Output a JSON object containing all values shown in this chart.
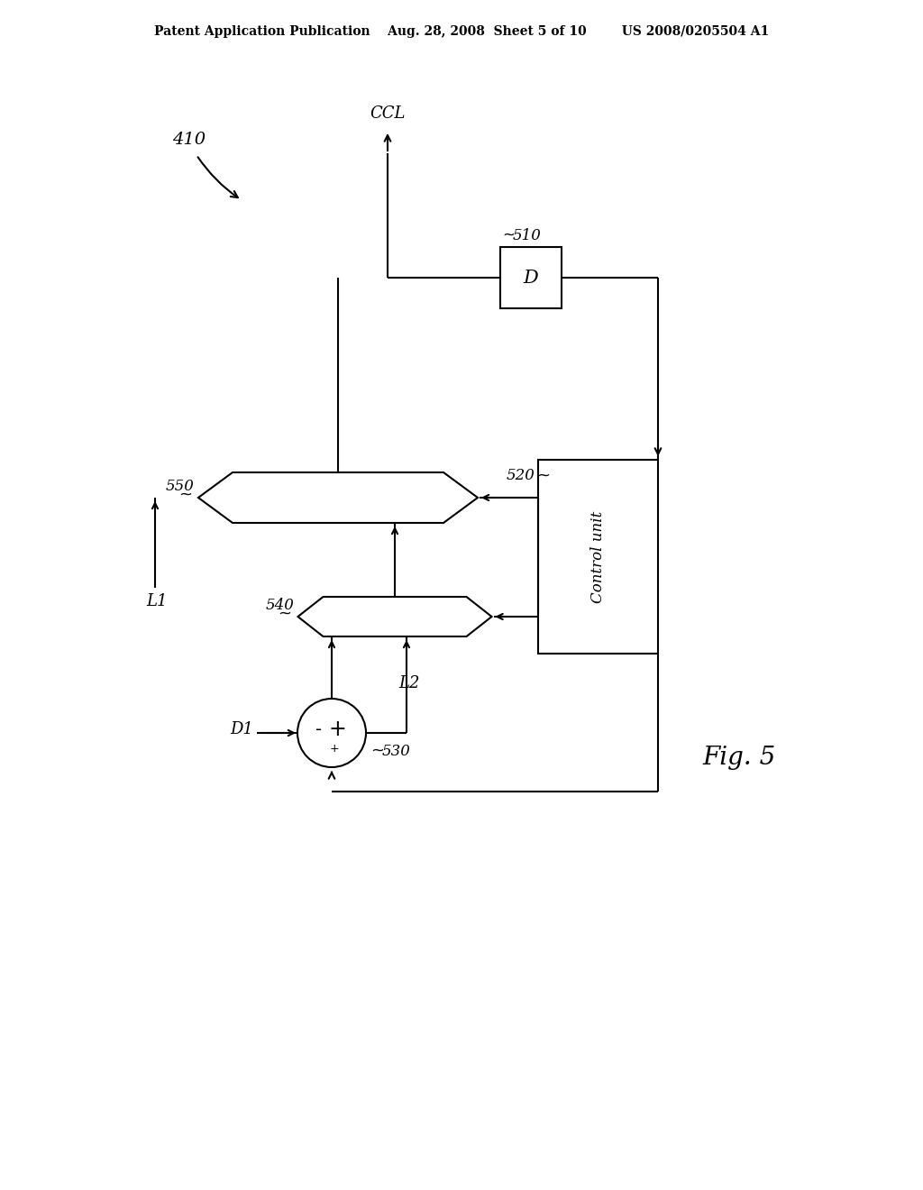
{
  "bg_color": "#ffffff",
  "line_color": "#000000",
  "header_text": "Patent Application Publication    Aug. 28, 2008  Sheet 5 of 10        US 2008/0205504 A1",
  "fig5_label": "Fig. 5",
  "label_410": "410",
  "label_CCL": "CCL",
  "label_510": "~510",
  "label_520": "520",
  "label_550": "550",
  "label_540": "540",
  "label_530": "530",
  "label_D1": "D1",
  "label_L1": "L1",
  "label_L2": "L2",
  "label_D": "D",
  "label_control": "Control unit",
  "wavy_550": "~",
  "wavy_540": "~",
  "wavy_530": "~",
  "wavy_520": "~"
}
